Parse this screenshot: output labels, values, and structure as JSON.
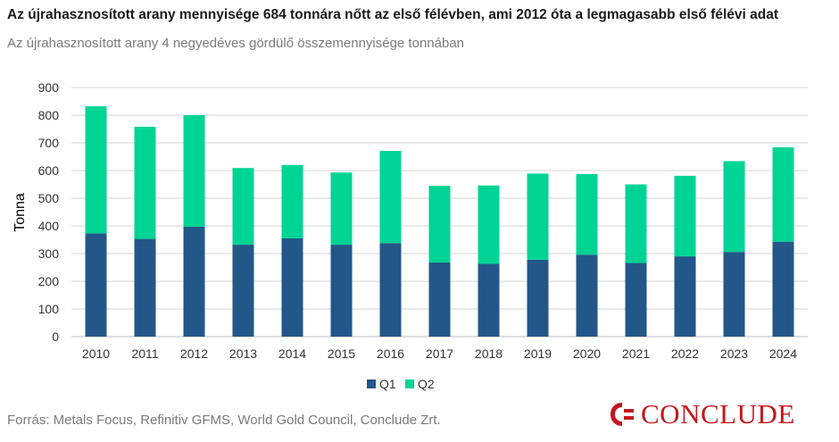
{
  "title": "Az újrahasznosított arany mennyisége 684 tonnára nőtt az első félévben, ami 2012 óta a legmagasabb első félévi adat",
  "subtitle": "Az újrahasznosított arany 4 negyedéves gördülő összemennyisége tonnában",
  "source": "Forrás: Metals Focus, Refinitiv GFMS, World Gold Council, Conclude Zrt.",
  "logo": {
    "text": "CONCLUDE",
    "color": "#c4161c"
  },
  "colors": {
    "q1": "#235789",
    "q2": "#00d494",
    "grid": "#d4d4d4",
    "axis_text": "#333333"
  },
  "chart_data": {
    "type": "bar",
    "stacked": true,
    "categories": [
      "2010",
      "2011",
      "2012",
      "2013",
      "2014",
      "2015",
      "2016",
      "2017",
      "2018",
      "2019",
      "2020",
      "2021",
      "2022",
      "2023",
      "2024"
    ],
    "series": [
      {
        "name": "Q1",
        "values": [
          373,
          353,
          397,
          332,
          355,
          332,
          338,
          268,
          263,
          278,
          296,
          266,
          290,
          306,
          343
        ]
      },
      {
        "name": "Q2",
        "values": [
          459,
          405,
          403,
          277,
          265,
          261,
          333,
          277,
          283,
          311,
          291,
          284,
          291,
          328,
          341
        ]
      }
    ],
    "ylabel": "Tonna",
    "xlabel": "",
    "ylim": [
      0,
      900
    ],
    "yticks": [
      "0",
      "100",
      "200",
      "300",
      "400",
      "500",
      "600",
      "700",
      "800",
      "900"
    ],
    "grid": true,
    "legend": "bottom-center"
  }
}
